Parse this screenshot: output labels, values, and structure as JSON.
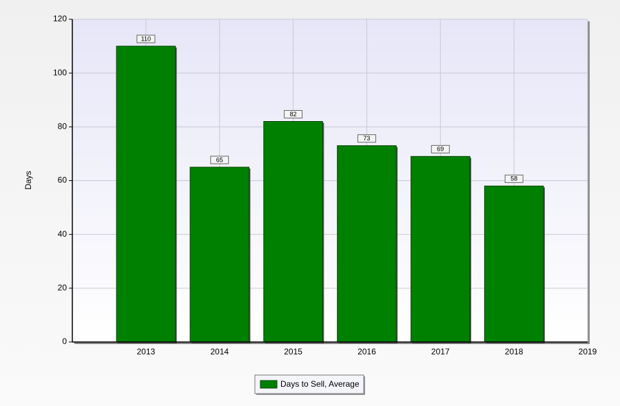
{
  "chart_data": {
    "type": "bar",
    "x": [
      2013,
      2014,
      2015,
      2016,
      2017,
      2018
    ],
    "series": [
      {
        "name": "Days to Sell, Average",
        "color": "#008000",
        "values": [
          110,
          65,
          82,
          73,
          69,
          58
        ]
      }
    ],
    "xlim": [
      2012,
      2019
    ],
    "xticks": [
      2013,
      2014,
      2015,
      2016,
      2017,
      2018,
      2019
    ],
    "ylim": [
      0,
      120
    ],
    "yticks": [
      0,
      20,
      40,
      60,
      80,
      100,
      120
    ],
    "ylabel": "Days",
    "grid": true,
    "legend": "bottom"
  }
}
